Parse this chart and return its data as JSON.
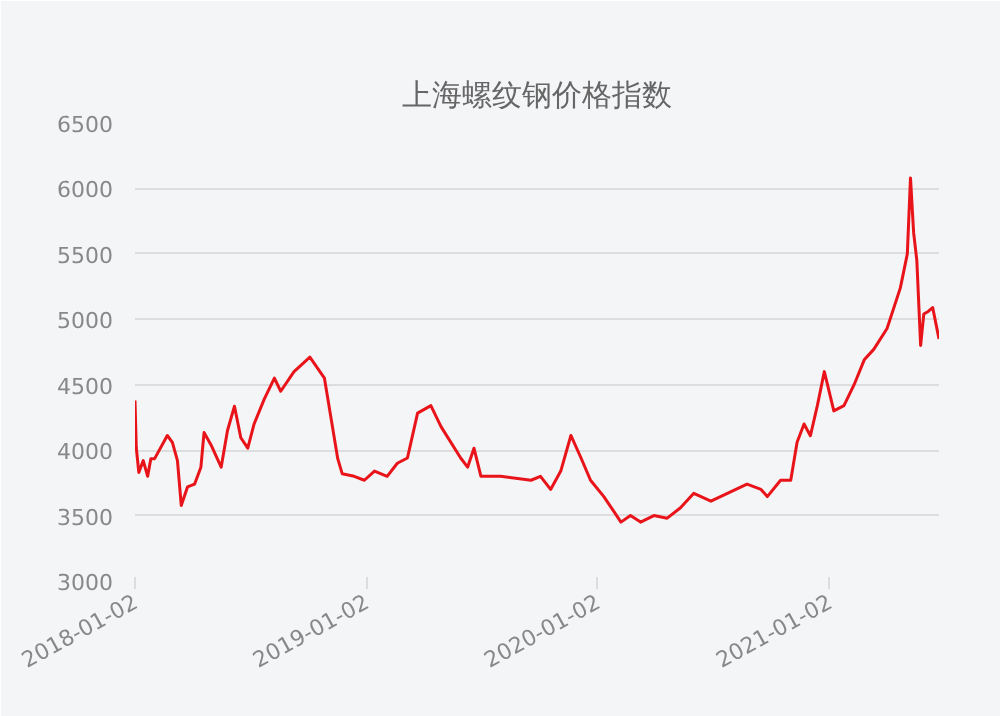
{
  "chart_data": {
    "type": "line",
    "title": "上海螺纹钢价格指数",
    "x": [
      "2018-01-02",
      "2018-01-04",
      "2018-01-08",
      "2018-01-15",
      "2018-01-22",
      "2018-01-27",
      "2018-02-02",
      "2018-02-22",
      "2018-03-02",
      "2018-03-10",
      "2018-03-16",
      "2018-03-26",
      "2018-04-06",
      "2018-04-16",
      "2018-04-21",
      "2018-05-02",
      "2018-05-18",
      "2018-05-28",
      "2018-06-08",
      "2018-06-18",
      "2018-06-29",
      "2018-07-09",
      "2018-07-25",
      "2018-08-10",
      "2018-08-20",
      "2018-09-10",
      "2018-10-05",
      "2018-10-28",
      "2018-11-18",
      "2018-11-25",
      "2018-12-14",
      "2018-12-30",
      "2019-01-15",
      "2019-02-04",
      "2019-02-20",
      "2019-03-08",
      "2019-03-24",
      "2019-04-14",
      "2019-04-30",
      "2019-05-31",
      "2019-06-11",
      "2019-06-21",
      "2019-07-02",
      "2019-08-02",
      "2019-09-19",
      "2019-10-04",
      "2019-10-20",
      "2019-11-05",
      "2019-11-21",
      "2019-12-07",
      "2019-12-22",
      "2020-01-12",
      "2020-01-28",
      "2020-02-08",
      "2020-02-23",
      "2020-03-10",
      "2020-03-31",
      "2020-04-21",
      "2020-05-12",
      "2020-06-02",
      "2020-06-29",
      "2020-07-25",
      "2020-08-25",
      "2020-09-16",
      "2020-09-26",
      "2020-10-17",
      "2020-11-02",
      "2020-11-12",
      "2020-11-23",
      "2020-12-03",
      "2020-12-14",
      "2020-12-25",
      "2020-12-30",
      "2021-01-09",
      "2021-01-25",
      "2021-02-10",
      "2021-02-26",
      "2021-03-13",
      "2021-04-03",
      "2021-04-24",
      "2021-05-05",
      "2021-05-10",
      "2021-05-15",
      "2021-05-20",
      "2021-05-26",
      "2021-05-31",
      "2021-06-07",
      "2021-06-14",
      "2021-06-24"
    ],
    "series": [
      {
        "color": "#e8141a",
        "values": [
          4380,
          4020,
          3830,
          3920,
          3800,
          3935,
          3935,
          4112,
          4060,
          3920,
          3577,
          3720,
          3740,
          3870,
          4134,
          4040,
          3870,
          4150,
          4336,
          4095,
          4015,
          4200,
          4390,
          4550,
          4450,
          4600,
          4711,
          4550,
          3935,
          3820,
          3800,
          3770,
          3840,
          3800,
          3900,
          3940,
          4283,
          4340,
          4180,
          3940,
          3870,
          4015,
          3800,
          3800,
          3770,
          3800,
          3700,
          3840,
          4112,
          3940,
          3770,
          3645,
          3530,
          3450,
          3500,
          3450,
          3500,
          3480,
          3560,
          3670,
          3610,
          3670,
          3740,
          3700,
          3645,
          3770,
          3770,
          4060,
          4200,
          4110,
          4340,
          4600,
          4500,
          4300,
          4340,
          4500,
          4690,
          4770,
          4930,
          5240,
          5500,
          6080,
          5660,
          5450,
          4800,
          5040,
          5060,
          5090,
          4850
        ]
      }
    ],
    "xlim": [
      "2018-01-02",
      "2021-06-24"
    ],
    "xticks": [
      "2018-01-02",
      "2019-01-02",
      "2020-01-02",
      "2021-01-02"
    ],
    "ylim": [
      3000,
      6500
    ],
    "yticks": [
      3000,
      3500,
      4000,
      4500,
      5000,
      5500,
      6000,
      6500
    ],
    "grid": "y",
    "marker": "none",
    "line_style": "solid"
  }
}
